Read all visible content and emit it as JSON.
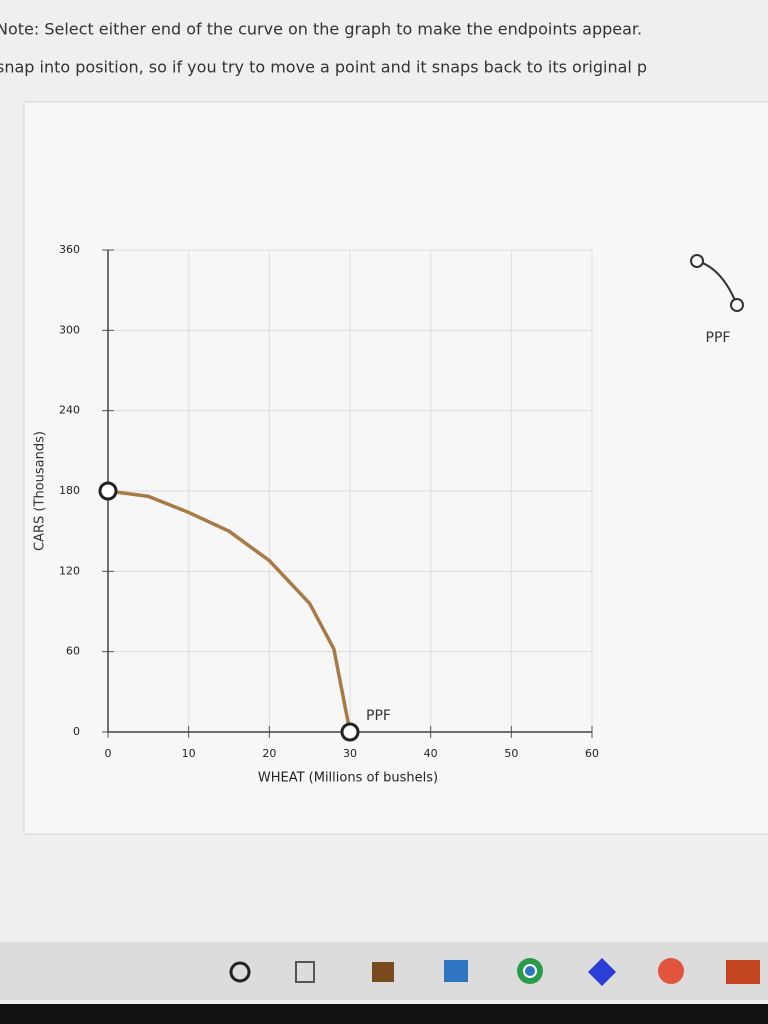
{
  "note": [
    "Note: Select either end of the curve on the graph to make the endpoints appear.",
    "snap into position, so if you try to move a point and it snaps back to its original p"
  ],
  "chart_data": {
    "type": "line",
    "xlabel": "WHEAT (Millions of bushels)",
    "ylabel": "CARS (Thousands)",
    "x": [
      0,
      5,
      10,
      15,
      20,
      25,
      28,
      30
    ],
    "series": [
      {
        "name": "PPF",
        "color": "#a87a45",
        "values": [
          180,
          176,
          164,
          150,
          128,
          96,
          62,
          0
        ]
      }
    ],
    "curve_label": "PPF",
    "xlim": [
      0,
      60
    ],
    "xticks": [
      0,
      10,
      20,
      30,
      40,
      50,
      60
    ],
    "ylim": [
      0,
      360
    ],
    "yticks": [
      0,
      60,
      120,
      180,
      240,
      300,
      360
    ],
    "grid": true
  }
}
